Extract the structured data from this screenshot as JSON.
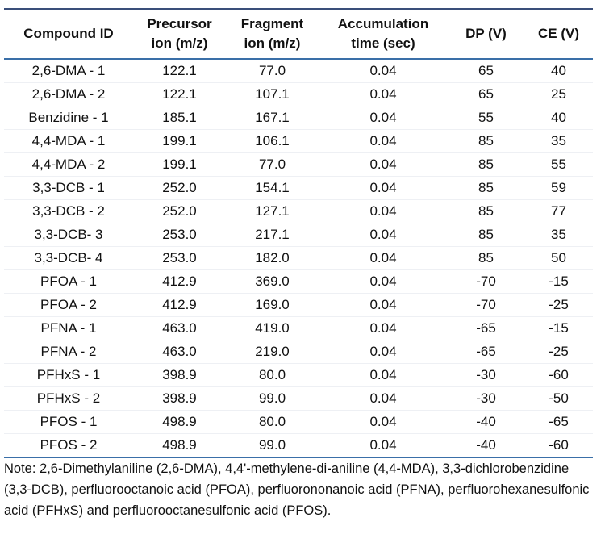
{
  "table": {
    "header": [
      [
        "Compound ID"
      ],
      [
        "Precursor",
        "ion (m/z)"
      ],
      [
        "Fragment",
        "ion (m/z)"
      ],
      [
        "Accumulation",
        "time (sec)"
      ],
      [
        "DP (V)"
      ],
      [
        "CE (V)"
      ]
    ],
    "rows": [
      [
        "2,6-DMA - 1",
        "122.1",
        "77.0",
        "0.04",
        "65",
        "40"
      ],
      [
        "2,6-DMA - 2",
        "122.1",
        "107.1",
        "0.04",
        "65",
        "25"
      ],
      [
        "Benzidine - 1",
        "185.1",
        "167.1",
        "0.04",
        "55",
        "40"
      ],
      [
        "4,4-MDA - 1",
        "199.1",
        "106.1",
        "0.04",
        "85",
        "35"
      ],
      [
        "4,4-MDA - 2",
        "199.1",
        "77.0",
        "0.04",
        "85",
        "55"
      ],
      [
        "3,3-DCB - 1",
        "252.0",
        "154.1",
        "0.04",
        "85",
        "59"
      ],
      [
        "3,3-DCB - 2",
        "252.0",
        "127.1",
        "0.04",
        "85",
        "77"
      ],
      [
        "3,3-DCB- 3",
        "253.0",
        "217.1",
        "0.04",
        "85",
        "35"
      ],
      [
        "3,3-DCB- 4",
        "253.0",
        "182.0",
        "0.04",
        "85",
        "50"
      ],
      [
        "PFOA - 1",
        "412.9",
        "369.0",
        "0.04",
        "-70",
        "-15"
      ],
      [
        "PFOA - 2",
        "412.9",
        "169.0",
        "0.04",
        "-70",
        "-25"
      ],
      [
        "PFNA - 1",
        "463.0",
        "419.0",
        "0.04",
        "-65",
        "-15"
      ],
      [
        "PFNA - 2",
        "463.0",
        "219.0",
        "0.04",
        "-65",
        "-25"
      ],
      [
        "PFHxS - 1",
        "398.9",
        "80.0",
        "0.04",
        "-30",
        "-60"
      ],
      [
        "PFHxS - 2",
        "398.9",
        "99.0",
        "0.04",
        "-30",
        "-50"
      ],
      [
        "PFOS - 1",
        "498.9",
        "80.0",
        "0.04",
        "-40",
        "-65"
      ],
      [
        "PFOS - 2",
        "498.9",
        "99.0",
        "0.04",
        "-40",
        "-60"
      ]
    ]
  },
  "note": "Note: 2,6-Dimethylaniline (2,6-DMA), 4,4'-methylene-di-aniline (4,4-MDA), 3,3-dichlorobenzidine (3,3-DCB), perfluorooctanoic acid (PFOA), perfluorononanoic acid (PFNA), perfluorohexanesulfonic acid (PFHxS) and perfluorooctanesulfonic acid (PFOS)."
}
